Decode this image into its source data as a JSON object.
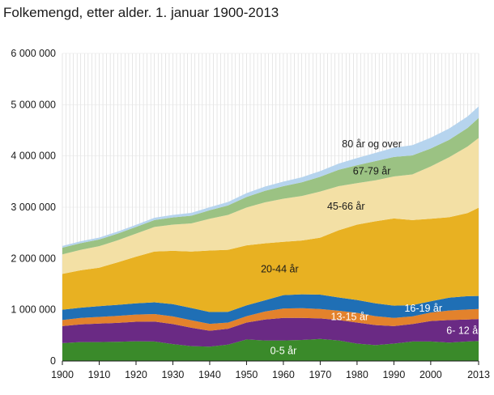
{
  "chart_data": {
    "type": "area",
    "stacked": true,
    "title": "Folkemengd, etter alder. 1. januar 1900-2013",
    "xlabel": "",
    "ylabel": "",
    "x_ticks": [
      "1900",
      "1910",
      "1920",
      "1930",
      "1940",
      "1950",
      "1960",
      "1970",
      "1980",
      "1990",
      "2000",
      "2013"
    ],
    "y_ticks": [
      "0",
      "1 000 000",
      "2 000 000",
      "3 000 000",
      "4 000 000",
      "5 000 000",
      "6 000 000"
    ],
    "xlim": [
      1900,
      2013
    ],
    "ylim": [
      0,
      6000000
    ],
    "grid": "vertical gridline every year",
    "x": [
      1900,
      1905,
      1910,
      1915,
      1920,
      1925,
      1930,
      1935,
      1940,
      1945,
      1950,
      1955,
      1960,
      1965,
      1970,
      1975,
      1980,
      1985,
      1990,
      1995,
      2000,
      2005,
      2010,
      2013
    ],
    "series": [
      {
        "name": "0-5 år",
        "color": "#3a8a2a",
        "label_color": "#ffffff",
        "values": [
          350000,
          370000,
          370000,
          375000,
          385000,
          380000,
          330000,
          290000,
          280000,
          320000,
          420000,
          400000,
          400000,
          410000,
          430000,
          400000,
          340000,
          310000,
          340000,
          380000,
          380000,
          360000,
          380000,
          390000
        ]
      },
      {
        "name": "6- 12 år",
        "color": "#6a2a84",
        "label_color": "#ffffff",
        "values": [
          330000,
          345000,
          360000,
          370000,
          380000,
          390000,
          390000,
          360000,
          310000,
          310000,
          330000,
          410000,
          440000,
          430000,
          400000,
          400000,
          410000,
          390000,
          340000,
          340000,
          400000,
          440000,
          430000,
          430000
        ]
      },
      {
        "name": "13-15 år",
        "color": "#e3822c",
        "label_color": "#ffffff",
        "values": [
          120000,
          125000,
          130000,
          135000,
          140000,
          145000,
          150000,
          145000,
          135000,
          120000,
          125000,
          155000,
          185000,
          190000,
          185000,
          180000,
          190000,
          175000,
          160000,
          150000,
          165000,
          185000,
          195000,
          195000
        ]
      },
      {
        "name": "16-19 år",
        "color": "#1f6fb5",
        "label_color": "#ffffff",
        "values": [
          200000,
          200000,
          210000,
          215000,
          220000,
          230000,
          240000,
          240000,
          230000,
          210000,
          210000,
          220000,
          260000,
          270000,
          280000,
          260000,
          250000,
          250000,
          240000,
          220000,
          220000,
          250000,
          260000,
          255000
        ]
      },
      {
        "name": "20-44 år",
        "color": "#e8b122",
        "label_color": "#1a1a1a",
        "values": [
          700000,
          730000,
          750000,
          830000,
          910000,
          990000,
          1040000,
          1100000,
          1200000,
          1210000,
          1170000,
          1110000,
          1040000,
          1050000,
          1110000,
          1310000,
          1470000,
          1600000,
          1700000,
          1660000,
          1610000,
          1570000,
          1620000,
          1720000
        ]
      },
      {
        "name": "45-66 år",
        "color": "#f3e0a5",
        "label_color": "#1a1a1a",
        "values": [
          380000,
          400000,
          420000,
          430000,
          450000,
          480000,
          510000,
          550000,
          620000,
          680000,
          740000,
          800000,
          840000,
          870000,
          900000,
          860000,
          810000,
          800000,
          820000,
          890000,
          1020000,
          1170000,
          1300000,
          1360000
        ]
      },
      {
        "name": "67-79 år",
        "color": "#9bc283",
        "label_color": "#1a1a1a",
        "values": [
          130000,
          130000,
          130000,
          130000,
          130000,
          135000,
          140000,
          150000,
          165000,
          185000,
          205000,
          225000,
          245000,
          265000,
          290000,
          320000,
          350000,
          375000,
          380000,
          370000,
          350000,
          340000,
          360000,
          390000
        ]
      },
      {
        "name": "80 år og over",
        "color": "#b6d4ee",
        "label_color": "#1a1a1a",
        "values": [
          35000,
          36000,
          38000,
          40000,
          42000,
          45000,
          50000,
          55000,
          60000,
          67000,
          75000,
          82000,
          90000,
          100000,
          110000,
          120000,
          140000,
          160000,
          180000,
          200000,
          210000,
          220000,
          225000,
          225000
        ]
      }
    ]
  }
}
